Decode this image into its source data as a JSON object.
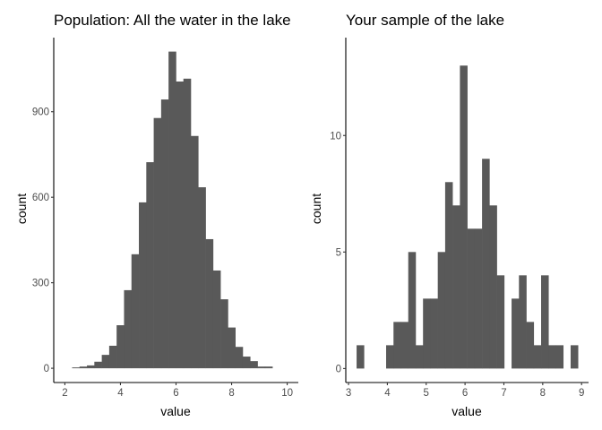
{
  "chart_data": [
    {
      "type": "bar",
      "title": "Population: All the water in the lake",
      "xlabel": "value",
      "ylabel": "count",
      "bin_start": 2.26,
      "bin_width": 0.267,
      "values": [
        3,
        6,
        10,
        23,
        47,
        79,
        151,
        274,
        400,
        582,
        723,
        878,
        943,
        1111,
        1006,
        1016,
        815,
        635,
        453,
        343,
        242,
        143,
        75,
        41,
        25,
        6,
        6
      ],
      "xlim": [
        1.6,
        10.4
      ],
      "ylim": [
        -50,
        1160
      ],
      "xticks": [
        "2",
        "4",
        "6",
        "8",
        "10"
      ],
      "yticks": [
        "0",
        "300",
        "600",
        "900"
      ],
      "grid": false,
      "fill": "#595959"
    },
    {
      "type": "bar",
      "title": "Your sample of the lake",
      "xlabel": "value",
      "ylabel": "count",
      "bin_start": 3.208,
      "bin_width": 0.19,
      "values": [
        1,
        0,
        0,
        0,
        1,
        2,
        2,
        5,
        1,
        3,
        3,
        5,
        8,
        7,
        13,
        6,
        6,
        9,
        7,
        4,
        0,
        3,
        4,
        2,
        1,
        4,
        1,
        1,
        0,
        1
      ],
      "xlim": [
        2.93,
        9.18
      ],
      "ylim": [
        -0.6,
        14.2
      ],
      "xticks": [
        "3",
        "4",
        "5",
        "6",
        "7",
        "8",
        "9"
      ],
      "yticks": [
        "0",
        "5",
        "10"
      ],
      "grid": false,
      "fill": "#595959"
    }
  ]
}
